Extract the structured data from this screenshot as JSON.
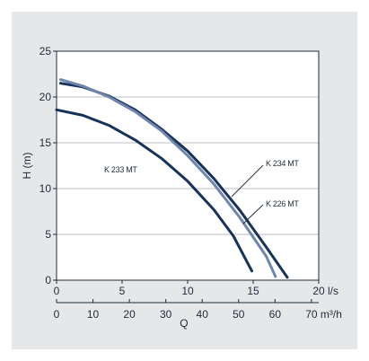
{
  "chart_data": {
    "type": "line",
    "title": "",
    "ylabel": "H (m)",
    "xlabel": "Q",
    "ylim": [
      0,
      25
    ],
    "yticks": [
      0,
      5,
      10,
      15,
      20,
      25
    ],
    "x_primary": {
      "unit": "l/s",
      "lim": [
        0,
        20
      ],
      "ticks": [
        0,
        5,
        10,
        15,
        20
      ]
    },
    "x_secondary": {
      "unit": "m³/h",
      "lim": [
        0,
        72
      ],
      "ticks": [
        0,
        10,
        20,
        30,
        40,
        50,
        60,
        70
      ]
    },
    "grid": "horizontal",
    "series": [
      {
        "name": "K 233 MT",
        "color": "#16335c",
        "points": [
          [
            0,
            18.6
          ],
          [
            2,
            18.0
          ],
          [
            4,
            16.9
          ],
          [
            6,
            15.3
          ],
          [
            8,
            13.3
          ],
          [
            10,
            10.8
          ],
          [
            12,
            7.7
          ],
          [
            13.5,
            4.8
          ],
          [
            14.9,
            1.0
          ]
        ]
      },
      {
        "name": "K 234 MT",
        "color": "#16335c",
        "points": [
          [
            0.3,
            21.5
          ],
          [
            2,
            21.1
          ],
          [
            4,
            20.1
          ],
          [
            6,
            18.6
          ],
          [
            8,
            16.5
          ],
          [
            10,
            14.1
          ],
          [
            12,
            11.1
          ],
          [
            14,
            7.6
          ],
          [
            16,
            3.6
          ],
          [
            17.6,
            0.3
          ]
        ]
      },
      {
        "name": "K 226 MT",
        "color": "#6e86ae",
        "points": [
          [
            0.3,
            21.9
          ],
          [
            2,
            21.2
          ],
          [
            4,
            20.0
          ],
          [
            6,
            18.4
          ],
          [
            8,
            16.3
          ],
          [
            10,
            13.6
          ],
          [
            12,
            10.5
          ],
          [
            14,
            6.8
          ],
          [
            16,
            2.6
          ],
          [
            16.7,
            0.4
          ]
        ]
      }
    ]
  }
}
